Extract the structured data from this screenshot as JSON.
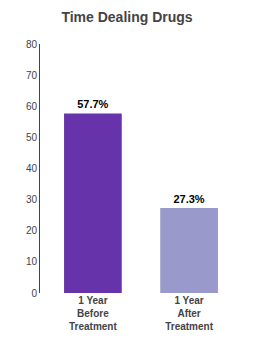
{
  "chart_data": {
    "type": "bar",
    "title": "Time Dealing Drugs",
    "categories": [
      "1 Year\nBefore\nTreatment",
      "1 Year\nAfter\nTreatment"
    ],
    "values": [
      57.7,
      27.3
    ],
    "value_labels": [
      "57.7%",
      "27.3%"
    ],
    "data_labels": true,
    "colors": [
      "#6633aa",
      "#9999cc"
    ],
    "ylim": [
      0,
      80
    ],
    "yticks": [
      0,
      10,
      20,
      30,
      40,
      50,
      60,
      70,
      80
    ],
    "grid": false
  }
}
